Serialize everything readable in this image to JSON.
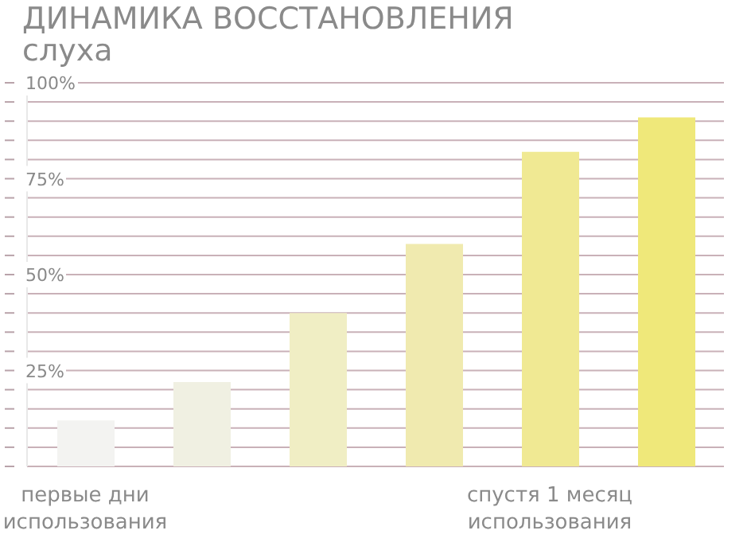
{
  "chart_data": {
    "type": "bar",
    "title": "ДИНАМИКА ВОССТАНОВЛЕНИЯ слуха",
    "categories": [
      "первые дни использования",
      null,
      null,
      null,
      "спустя 1 месяц использования",
      null
    ],
    "values": [
      12,
      22,
      40,
      58,
      82,
      91
    ],
    "colors": [
      "#f3f3f1",
      "#f0f0e2",
      "#f0eec4",
      "#f0eaaf",
      "#f0e993",
      "#efe87a"
    ],
    "ylim": [
      0,
      100
    ],
    "yticks": [
      {
        "value": 0,
        "label": null
      },
      {
        "value": 5,
        "label": null
      },
      {
        "value": 10,
        "label": null
      },
      {
        "value": 15,
        "label": null
      },
      {
        "value": 20,
        "label": null
      },
      {
        "value": 25,
        "label": "25%"
      },
      {
        "value": 30,
        "label": null
      },
      {
        "value": 35,
        "label": null
      },
      {
        "value": 40,
        "label": null
      },
      {
        "value": 45,
        "label": null
      },
      {
        "value": 50,
        "label": "50%"
      },
      {
        "value": 55,
        "label": null
      },
      {
        "value": 60,
        "label": null
      },
      {
        "value": 65,
        "label": null
      },
      {
        "value": 70,
        "label": null
      },
      {
        "value": 75,
        "label": "75%"
      },
      {
        "value": 80,
        "label": null
      },
      {
        "value": 85,
        "label": null
      },
      {
        "value": 90,
        "label": null
      },
      {
        "value": 95,
        "label": null
      },
      {
        "value": 100,
        "label": "100%"
      }
    ],
    "grid": "y"
  }
}
